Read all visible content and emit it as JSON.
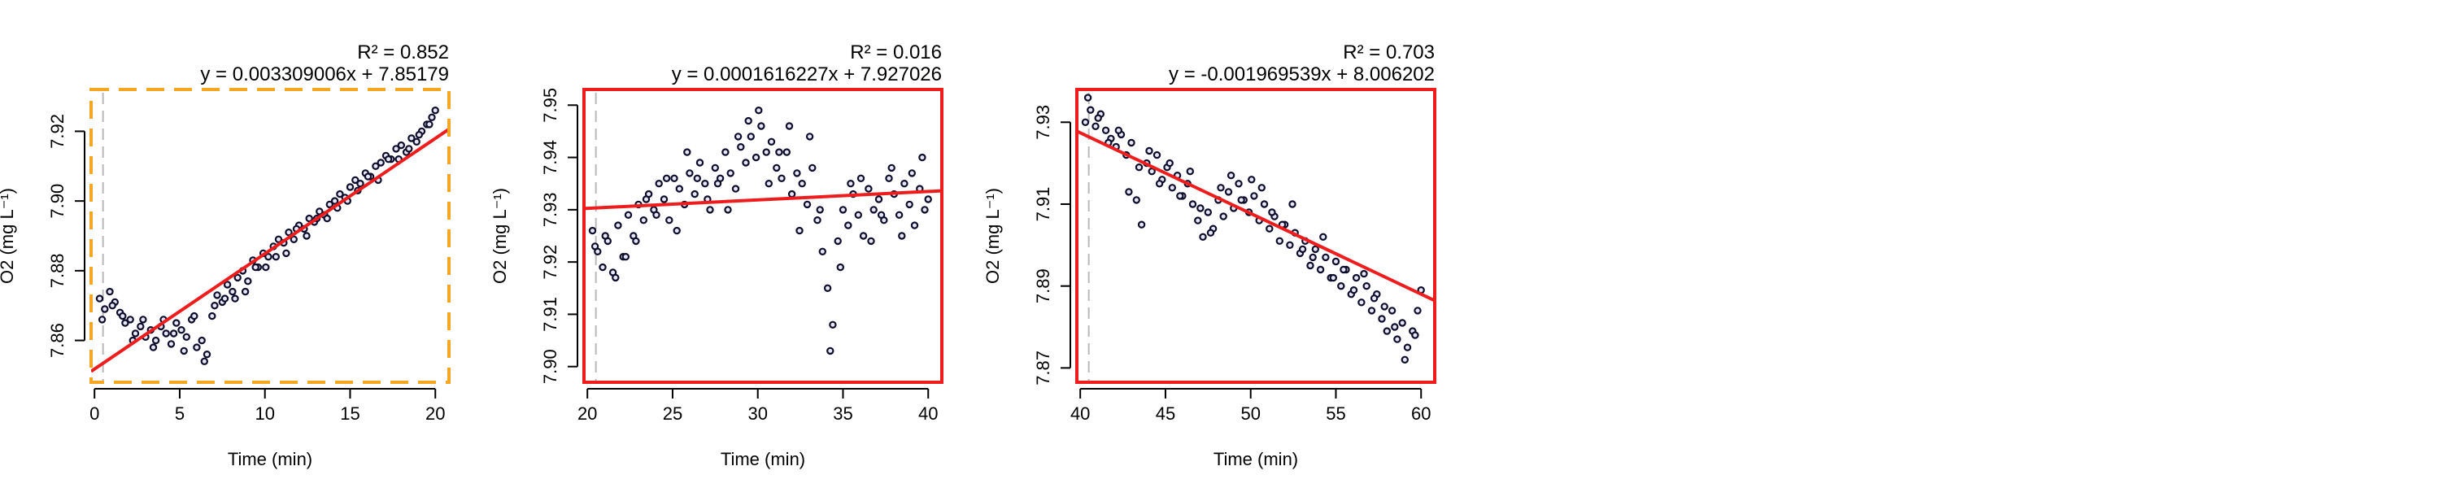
{
  "chart_data": [
    {
      "type": "scatter",
      "xlabel": "Time (min)",
      "ylabel": "O2 (mg L⁻¹)",
      "xlim": [
        -0.2,
        20.8
      ],
      "ylim": [
        7.848,
        7.932
      ],
      "x_ticks": [
        0,
        5,
        10,
        15,
        20
      ],
      "y_ticks": [
        7.86,
        7.88,
        7.9,
        7.92
      ],
      "r2_label": "R² = 0.852",
      "equation_label": "y = 0.003309006x + 7.85179",
      "fit": {
        "slope": 0.003309006,
        "intercept": 7.85179
      },
      "vline_x": 0.5,
      "frame": {
        "color": "#f5a623",
        "style": "dashed"
      },
      "point_color": "#0d0d2b",
      "fit_color": "#ee1c1c",
      "data_series": {
        "name": "",
        "x": [
          0.3,
          0.6,
          0.9,
          1.2,
          1.5,
          1.8,
          2.1,
          2.4,
          2.7,
          3.0,
          3.3,
          3.6,
          3.9,
          4.2,
          4.5,
          4.8,
          5.1,
          5.4,
          5.7,
          6.0,
          6.3,
          6.6,
          6.9,
          7.2,
          7.5,
          7.8,
          8.1,
          8.4,
          8.7,
          9.0,
          9.3,
          9.6,
          9.9,
          10.2,
          10.5,
          10.8,
          11.1,
          11.4,
          11.7,
          12.0,
          12.3,
          12.6,
          12.9,
          13.2,
          13.5,
          13.8,
          14.1,
          14.4,
          14.7,
          15.0,
          15.3,
          15.6,
          15.9,
          16.2,
          16.5,
          16.8,
          17.1,
          17.4,
          17.7,
          18.0,
          18.3,
          18.6,
          18.9,
          19.2,
          19.5,
          19.8,
          20.0,
          0.45,
          1.05,
          1.65,
          2.25,
          2.85,
          3.45,
          4.05,
          4.65,
          5.25,
          5.85,
          6.45,
          7.05,
          7.65,
          8.25,
          8.85,
          9.45,
          10.05,
          10.65,
          11.25,
          11.85,
          12.45,
          13.05,
          13.65,
          14.25,
          14.85,
          15.45,
          16.05,
          16.65,
          17.25,
          17.85,
          18.45,
          19.05,
          19.65
        ],
        "y": [
          7.872,
          7.869,
          7.874,
          7.871,
          7.868,
          7.865,
          7.866,
          7.862,
          7.864,
          7.861,
          7.863,
          7.86,
          7.864,
          7.862,
          7.859,
          7.865,
          7.863,
          7.861,
          7.866,
          7.858,
          7.86,
          7.856,
          7.867,
          7.873,
          7.871,
          7.876,
          7.874,
          7.878,
          7.88,
          7.877,
          7.883,
          7.881,
          7.885,
          7.884,
          7.887,
          7.889,
          7.888,
          7.891,
          7.889,
          7.893,
          7.892,
          7.895,
          7.894,
          7.897,
          7.896,
          7.899,
          7.9,
          7.902,
          7.901,
          7.904,
          7.906,
          7.905,
          7.908,
          7.907,
          7.91,
          7.911,
          7.913,
          7.912,
          7.915,
          7.916,
          7.914,
          7.918,
          7.917,
          7.92,
          7.922,
          7.924,
          7.926,
          7.866,
          7.87,
          7.867,
          7.86,
          7.866,
          7.858,
          7.866,
          7.862,
          7.857,
          7.867,
          7.854,
          7.87,
          7.872,
          7.872,
          7.874,
          7.881,
          7.881,
          7.884,
          7.885,
          7.892,
          7.89,
          7.895,
          7.895,
          7.898,
          7.9,
          7.903,
          7.907,
          7.906,
          7.912,
          7.912,
          7.915,
          7.919,
          7.922
        ]
      }
    },
    {
      "type": "scatter",
      "xlabel": "Time (min)",
      "ylabel": "O2 (mg L⁻¹)",
      "xlim": [
        19.8,
        40.8
      ],
      "ylim": [
        7.897,
        7.953
      ],
      "x_ticks": [
        20,
        25,
        30,
        35,
        40
      ],
      "y_ticks": [
        7.9,
        7.91,
        7.92,
        7.93,
        7.94,
        7.95
      ],
      "r2_label": "R² = 0.016",
      "equation_label": "y = 0.0001616227x + 7.927026",
      "fit": {
        "slope": 0.0001616227,
        "intercept": 7.927026
      },
      "vline_x": 20.5,
      "frame": {
        "color": "#ee1c1c",
        "style": "solid"
      },
      "point_color": "#0d0d2b",
      "fit_color": "#ee1c1c",
      "data_series": {
        "name": "",
        "x": [
          20.3,
          20.6,
          20.9,
          21.2,
          21.5,
          21.8,
          22.1,
          22.4,
          22.7,
          23.0,
          23.3,
          23.6,
          23.9,
          24.2,
          24.5,
          24.8,
          25.1,
          25.4,
          25.7,
          26.0,
          26.3,
          26.6,
          26.9,
          27.2,
          27.5,
          27.8,
          28.1,
          28.4,
          28.7,
          29.0,
          29.3,
          29.6,
          29.9,
          30.2,
          30.5,
          30.8,
          31.1,
          31.4,
          31.7,
          32.0,
          32.3,
          32.6,
          32.9,
          33.2,
          33.5,
          33.8,
          34.1,
          34.4,
          34.7,
          35.0,
          35.3,
          35.6,
          35.9,
          36.2,
          36.5,
          36.8,
          37.1,
          37.4,
          37.7,
          38.0,
          38.3,
          38.6,
          38.9,
          39.2,
          39.5,
          39.8,
          40.0,
          20.45,
          21.05,
          21.65,
          22.25,
          22.85,
          23.45,
          24.05,
          24.65,
          25.25,
          25.85,
          26.45,
          27.05,
          27.65,
          28.25,
          28.85,
          29.45,
          30.05,
          30.65,
          31.25,
          31.85,
          32.45,
          33.05,
          33.65,
          34.25,
          34.85,
          35.45,
          36.05,
          36.65,
          37.25,
          37.85,
          38.45,
          39.05,
          39.65
        ],
        "y": [
          7.926,
          7.922,
          7.919,
          7.924,
          7.918,
          7.927,
          7.921,
          7.929,
          7.925,
          7.931,
          7.928,
          7.933,
          7.93,
          7.935,
          7.932,
          7.928,
          7.936,
          7.934,
          7.931,
          7.937,
          7.933,
          7.939,
          7.935,
          7.93,
          7.938,
          7.936,
          7.941,
          7.937,
          7.934,
          7.942,
          7.939,
          7.944,
          7.94,
          7.946,
          7.941,
          7.943,
          7.938,
          7.936,
          7.941,
          7.933,
          7.937,
          7.935,
          7.931,
          7.938,
          7.928,
          7.922,
          7.915,
          7.908,
          7.924,
          7.93,
          7.927,
          7.933,
          7.929,
          7.925,
          7.934,
          7.93,
          7.932,
          7.928,
          7.936,
          7.933,
          7.929,
          7.935,
          7.931,
          7.927,
          7.934,
          7.93,
          7.932,
          7.923,
          7.925,
          7.917,
          7.921,
          7.924,
          7.932,
          7.929,
          7.936,
          7.926,
          7.941,
          7.936,
          7.932,
          7.935,
          7.93,
          7.944,
          7.947,
          7.949,
          7.935,
          7.941,
          7.946,
          7.926,
          7.944,
          7.93,
          7.903,
          7.919,
          7.935,
          7.936,
          7.924,
          7.929,
          7.938,
          7.925,
          7.937,
          7.94
        ]
      }
    },
    {
      "type": "scatter",
      "xlabel": "Time (min)",
      "ylabel": "O2 (mg L⁻¹)",
      "xlim": [
        39.8,
        60.8
      ],
      "ylim": [
        7.8665,
        7.938
      ],
      "x_ticks": [
        40,
        45,
        50,
        55,
        60
      ],
      "y_ticks": [
        7.87,
        7.89,
        7.91,
        7.93
      ],
      "r2_label": "R² = 0.703",
      "equation_label": "y = -0.001969539x + 8.006202",
      "fit": {
        "slope": -0.001969539,
        "intercept": 8.006202
      },
      "vline_x": 40.5,
      "frame": {
        "color": "#ee1c1c",
        "style": "solid"
      },
      "point_color": "#0d0d2b",
      "fit_color": "#ee1c1c",
      "data_series": {
        "name": "",
        "x": [
          40.3,
          40.6,
          40.9,
          41.2,
          41.5,
          41.8,
          42.1,
          42.4,
          42.7,
          43.0,
          43.3,
          43.6,
          43.9,
          44.2,
          44.5,
          44.8,
          45.1,
          45.4,
          45.7,
          46.0,
          46.3,
          46.6,
          46.9,
          47.2,
          47.5,
          47.8,
          48.1,
          48.4,
          48.7,
          49.0,
          49.3,
          49.6,
          49.9,
          50.2,
          50.5,
          50.8,
          51.1,
          51.4,
          51.7,
          52.0,
          52.3,
          52.6,
          52.9,
          53.2,
          53.5,
          53.8,
          54.1,
          54.4,
          54.7,
          55.0,
          55.3,
          55.6,
          55.9,
          56.2,
          56.5,
          56.8,
          57.1,
          57.4,
          57.7,
          58.0,
          58.3,
          58.6,
          58.9,
          59.2,
          59.5,
          59.8,
          60.0,
          40.45,
          41.05,
          41.65,
          42.25,
          42.85,
          43.45,
          44.05,
          44.65,
          45.25,
          45.85,
          46.45,
          47.05,
          47.65,
          48.25,
          48.85,
          49.45,
          50.05,
          50.65,
          51.25,
          51.85,
          52.45,
          53.05,
          53.65,
          54.25,
          54.85,
          55.45,
          56.05,
          56.65,
          57.25,
          57.85,
          58.45,
          59.05,
          59.65
        ],
        "y": [
          7.93,
          7.933,
          7.929,
          7.932,
          7.928,
          7.926,
          7.924,
          7.927,
          7.922,
          7.925,
          7.911,
          7.905,
          7.92,
          7.918,
          7.922,
          7.916,
          7.919,
          7.914,
          7.917,
          7.912,
          7.915,
          7.91,
          7.906,
          7.902,
          7.908,
          7.904,
          7.911,
          7.907,
          7.913,
          7.909,
          7.915,
          7.911,
          7.908,
          7.912,
          7.906,
          7.91,
          7.904,
          7.907,
          7.901,
          7.905,
          7.9,
          7.903,
          7.898,
          7.901,
          7.895,
          7.899,
          7.894,
          7.897,
          7.892,
          7.896,
          7.89,
          7.894,
          7.888,
          7.892,
          7.886,
          7.89,
          7.884,
          7.888,
          7.882,
          7.879,
          7.884,
          7.877,
          7.881,
          7.875,
          7.879,
          7.884,
          7.889,
          7.936,
          7.931,
          7.925,
          7.928,
          7.913,
          7.919,
          7.923,
          7.915,
          7.92,
          7.912,
          7.918,
          7.909,
          7.903,
          7.914,
          7.917,
          7.911,
          7.916,
          7.914,
          7.908,
          7.905,
          7.91,
          7.899,
          7.897,
          7.902,
          7.892,
          7.894,
          7.889,
          7.893,
          7.887,
          7.885,
          7.88,
          7.872,
          7.878
        ]
      }
    }
  ]
}
